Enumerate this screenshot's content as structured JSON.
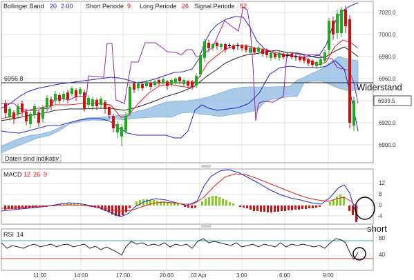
{
  "header": {
    "bb_label": "Bollinger Band",
    "bb_period": "20",
    "bb_dev": "2.00",
    "short_label": "Short Periode",
    "short_val": "9",
    "long_label": "Long Periode",
    "long_val": "26",
    "signal_label": "Signal Periode",
    "signal_val": "52"
  },
  "price_axis": [
    "7020.0",
    "7000.0",
    "6980.0",
    "6960.0",
    "6940.0",
    "6920.0",
    "6900.0"
  ],
  "level": {
    "value": "6956.8"
  },
  "last_price": "6939.5",
  "notice": "Daten sind indikativ",
  "macd": {
    "label": "MACD",
    "p1": "12",
    "p2": "26",
    "p3": "9",
    "axis": [
      "12",
      "8",
      "4",
      "0",
      "-4"
    ]
  },
  "rsi": {
    "label": "RSI",
    "period": "14",
    "axis": [
      "80",
      "40"
    ]
  },
  "time_axis": [
    "11:00",
    "14:00",
    "17:00",
    "20:00",
    "02 Apr",
    "3:00",
    "6:00",
    "9:00"
  ],
  "annotations": {
    "widerstand": "Widerstand",
    "short": "short"
  },
  "colors": {
    "candle_up": "#22aa22",
    "candle_down": "#cc1111",
    "cloud": "#8ab9e0",
    "bb_band": "#2222cc",
    "signal": "#9922aa"
  }
}
